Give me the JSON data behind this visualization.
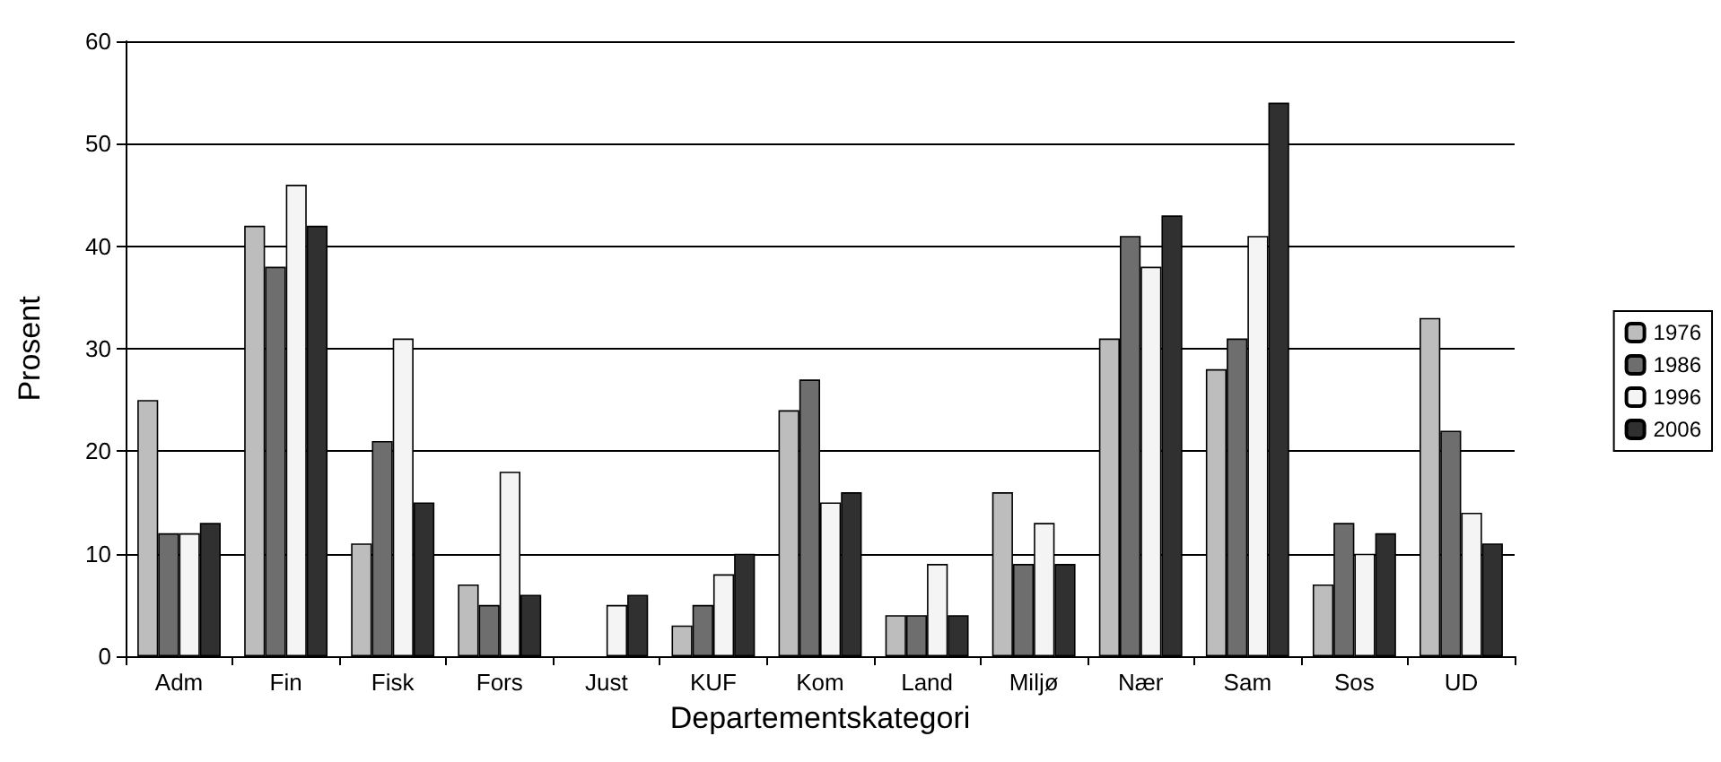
{
  "chart_data": {
    "type": "bar",
    "xlabel": "Departementskategori",
    "ylabel": "Prosent",
    "categories": [
      "Adm",
      "Fin",
      "Fisk",
      "Fors",
      "Just",
      "KUF",
      "Kom",
      "Land",
      "Miljø",
      "Nær",
      "Sam",
      "Sos",
      "UD"
    ],
    "series": [
      {
        "name": "1976",
        "color": "#bdbdbd",
        "values": [
          25,
          42,
          11,
          7,
          null,
          3,
          24,
          4,
          16,
          31,
          28,
          7,
          33
        ]
      },
      {
        "name": "1986",
        "color": "#6e6e6e",
        "values": [
          12,
          38,
          21,
          5,
          null,
          5,
          27,
          4,
          9,
          41,
          31,
          13,
          22
        ]
      },
      {
        "name": "1996",
        "color": "#f4f4f4",
        "values": [
          12,
          46,
          31,
          18,
          5,
          8,
          15,
          9,
          13,
          38,
          41,
          10,
          14
        ]
      },
      {
        "name": "2006",
        "color": "#303030",
        "values": [
          13,
          42,
          15,
          6,
          6,
          10,
          16,
          4,
          9,
          43,
          54,
          12,
          11
        ]
      }
    ],
    "ylim": [
      0,
      60
    ],
    "yticks": [
      0,
      10,
      20,
      30,
      40,
      50,
      60
    ],
    "grid": "y",
    "legend": "right"
  }
}
